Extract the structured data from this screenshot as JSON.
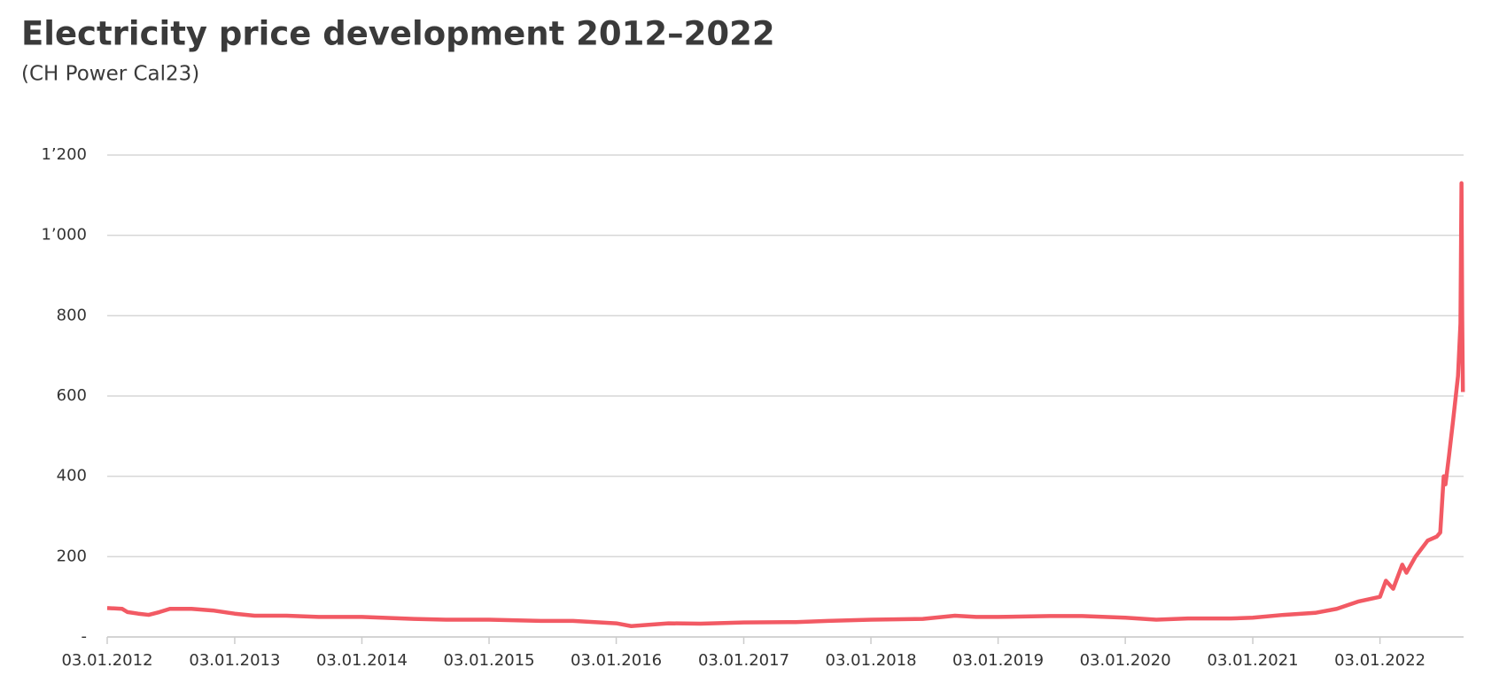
{
  "chart_data": {
    "type": "line",
    "title": "Electricity price development 2012–2022",
    "subtitle": "(CH Power Cal23)",
    "x": [
      "2012-01-03",
      "2012-02-15",
      "2012-03-01",
      "2012-04-01",
      "2012-05-01",
      "2012-06-01",
      "2012-07-01",
      "2012-09-01",
      "2012-11-01",
      "2013-01-03",
      "2013-03-01",
      "2013-06-01",
      "2013-09-01",
      "2014-01-03",
      "2014-06-01",
      "2014-09-01",
      "2015-01-03",
      "2015-06-01",
      "2015-09-01",
      "2016-01-03",
      "2016-02-15",
      "2016-04-01",
      "2016-06-01",
      "2016-09-01",
      "2017-01-03",
      "2017-06-01",
      "2017-09-01",
      "2018-01-03",
      "2018-06-01",
      "2018-09-01",
      "2018-11-01",
      "2019-01-03",
      "2019-06-01",
      "2019-09-01",
      "2020-01-03",
      "2020-04-01",
      "2020-07-01",
      "2020-11-01",
      "2021-01-03",
      "2021-04-01",
      "2021-07-01",
      "2021-09-01",
      "2021-11-01",
      "2022-01-03",
      "2022-01-20",
      "2022-02-10",
      "2022-03-08",
      "2022-03-20",
      "2022-04-15",
      "2022-05-20",
      "2022-06-15",
      "2022-06-25",
      "2022-07-05",
      "2022-07-10",
      "2022-07-20",
      "2022-08-01",
      "2022-08-15",
      "2022-08-22",
      "2022-08-25",
      "2022-08-27",
      "2022-08-29"
    ],
    "series": [
      {
        "name": "CH Power Cal23",
        "color": "#f25a64",
        "values": [
          72,
          70,
          62,
          58,
          55,
          62,
          70,
          70,
          66,
          58,
          53,
          53,
          50,
          50,
          45,
          43,
          43,
          40,
          40,
          34,
          27,
          30,
          34,
          33,
          36,
          37,
          40,
          43,
          45,
          53,
          50,
          50,
          52,
          52,
          48,
          43,
          46,
          46,
          48,
          55,
          60,
          70,
          88,
          100,
          140,
          120,
          180,
          160,
          200,
          240,
          250,
          260,
          400,
          380,
          450,
          540,
          650,
          780,
          1130,
          800,
          610
        ]
      }
    ],
    "xlim": [
      "2012-01-03",
      "2022-08-31"
    ],
    "xticks": [
      {
        "value": "2012-01-03",
        "label": "03.01.2012"
      },
      {
        "value": "2013-01-03",
        "label": "03.01.2013"
      },
      {
        "value": "2014-01-03",
        "label": "03.01.2014"
      },
      {
        "value": "2015-01-03",
        "label": "03.01.2015"
      },
      {
        "value": "2016-01-03",
        "label": "03.01.2016"
      },
      {
        "value": "2017-01-03",
        "label": "03.01.2017"
      },
      {
        "value": "2018-01-03",
        "label": "03.01.2018"
      },
      {
        "value": "2019-01-03",
        "label": "03.01.2019"
      },
      {
        "value": "2020-01-03",
        "label": "03.01.2020"
      },
      {
        "value": "2021-01-03",
        "label": "03.01.2021"
      },
      {
        "value": "2022-01-03",
        "label": "03.01.2022"
      }
    ],
    "ylim": [
      0,
      1200
    ],
    "yticks": [
      {
        "value": 0,
        "label": "-"
      },
      200,
      400,
      600,
      800,
      {
        "value": 1000,
        "label": "1’000"
      },
      {
        "value": 1200,
        "label": "1’200"
      }
    ],
    "grid": true
  }
}
